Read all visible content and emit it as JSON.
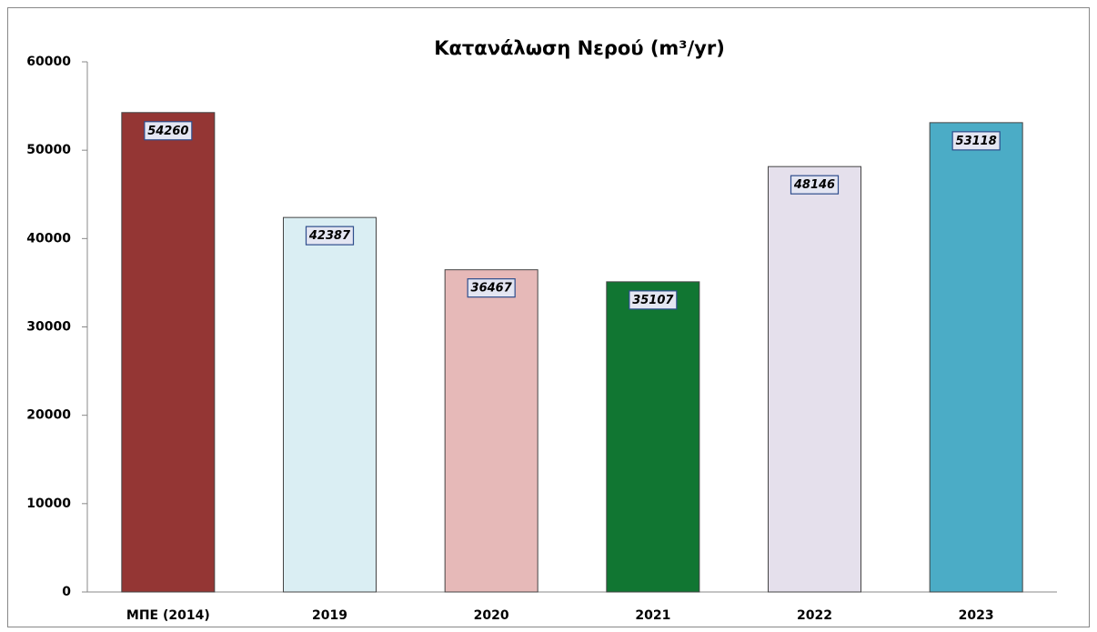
{
  "chart_data": {
    "type": "bar",
    "title": "Κατανάλωση Νερού (m³/yr)",
    "categories": [
      "ΜΠΕ (2014)",
      "2019",
      "2020",
      "2021",
      "2022",
      "2023"
    ],
    "values": [
      54260,
      42387,
      36467,
      35107,
      48146,
      53118
    ],
    "colors": [
      "#943634",
      "#daeef3",
      "#e6b9b8",
      "#117632",
      "#e5e0ec",
      "#4bacc6"
    ],
    "ylim": [
      0,
      60000
    ],
    "yticks": [
      0,
      10000,
      20000,
      30000,
      40000,
      50000,
      60000
    ],
    "grid": false
  }
}
